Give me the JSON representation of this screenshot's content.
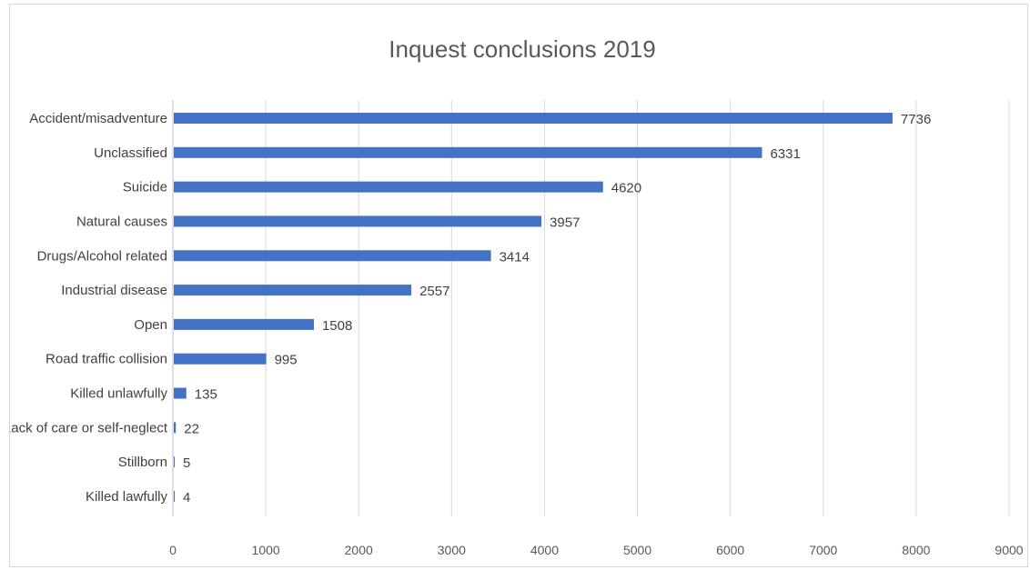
{
  "chart_data": {
    "type": "bar",
    "orientation": "horizontal",
    "title": "Inquest conclusions 2019",
    "categories": [
      "Accident/misadventure",
      "Unclassified",
      "Suicide",
      "Natural causes",
      "Drugs/Alcohol related",
      "Industrial disease",
      "Open",
      "Road traffic collision",
      "Killed unlawfully",
      "Lack of care or self-neglect",
      "Stillborn",
      "Killed lawfully"
    ],
    "values": [
      7736,
      6331,
      4620,
      3957,
      3414,
      2557,
      1508,
      995,
      135,
      22,
      5,
      4
    ],
    "value_labels": [
      "7736",
      "6331",
      "4620",
      "3957",
      "3414",
      "2557",
      "1508",
      "995",
      "135",
      "22",
      "5",
      "4"
    ],
    "xlim": [
      0,
      9000
    ],
    "xticks": [
      0,
      1000,
      2000,
      3000,
      4000,
      5000,
      6000,
      7000,
      8000,
      9000
    ],
    "xtick_labels": [
      "0",
      "1000",
      "2000",
      "3000",
      "4000",
      "5000",
      "6000",
      "7000",
      "8000",
      "9000"
    ],
    "xlabel": "",
    "ylabel": "",
    "grid": "vertical",
    "legend": "none",
    "bar_color": "#4472c4"
  }
}
